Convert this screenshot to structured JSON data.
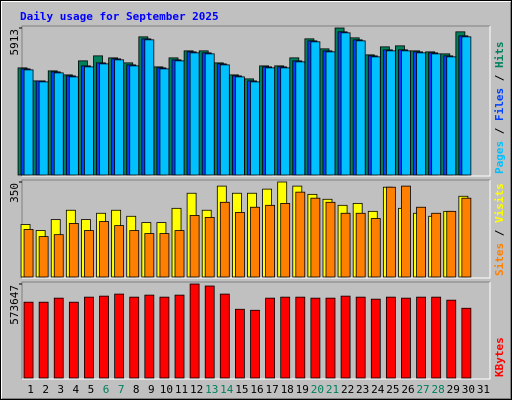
{
  "title": "Daily usage for September 2025",
  "categories": [
    "1",
    "2",
    "3",
    "4",
    "5",
    "6",
    "7",
    "8",
    "9",
    "10",
    "11",
    "12",
    "13",
    "14",
    "15",
    "16",
    "17",
    "18",
    "19",
    "20",
    "21",
    "22",
    "23",
    "24",
    "25",
    "26",
    "27",
    "28",
    "29",
    "30",
    "31"
  ],
  "highlight_categories": [
    "6",
    "7",
    "13",
    "14",
    "20",
    "21",
    "27",
    "28"
  ],
  "category_color": "#000000",
  "highlight_color": "#00805c",
  "label_separator": " / ",
  "chart_data": [
    {
      "type": "bar",
      "ylim": [
        0,
        5913
      ],
      "yticks": [
        5913
      ],
      "series": [
        {
          "name": "Hits",
          "color": "#00805c",
          "values": [
            4320,
            3800,
            4200,
            4040,
            4600,
            4800,
            4720,
            4520,
            5560,
            4360,
            4720,
            5000,
            5000,
            4520,
            4040,
            3880,
            4400,
            4400,
            4720,
            5480,
            5080,
            5913,
            5520,
            4840,
            5160,
            5200,
            5000,
            4960,
            4880,
            5760,
            null
          ]
        },
        {
          "name": "Files",
          "color": "#0040ff",
          "values": [
            4280,
            3800,
            4160,
            4000,
            4400,
            4520,
            4680,
            4440,
            5480,
            4320,
            4640,
            4960,
            4920,
            4480,
            4000,
            3800,
            4360,
            4360,
            4600,
            5400,
            5000,
            5760,
            5440,
            4800,
            5040,
            5040,
            4960,
            4920,
            4800,
            5600,
            null
          ]
        },
        {
          "name": "Pages",
          "color": "#00c0ff",
          "values": [
            4240,
            3760,
            4120,
            3960,
            4360,
            4480,
            4640,
            4400,
            5440,
            4280,
            4600,
            4920,
            4880,
            4440,
            3960,
            3760,
            4320,
            4320,
            4560,
            5360,
            4960,
            5720,
            5400,
            4760,
            5000,
            5000,
            4920,
            4880,
            4760,
            5560,
            null
          ]
        }
      ]
    },
    {
      "type": "bar",
      "ylim": [
        0,
        350
      ],
      "yticks": [
        350
      ],
      "series": [
        {
          "name": "Visits",
          "color": "#ffff00",
          "values": [
            195,
            173,
            213,
            247,
            213,
            236,
            247,
            225,
            202,
            202,
            254,
            309,
            247,
            335,
            309,
            309,
            324,
            350,
            335,
            305,
            287,
            265,
            272,
            243,
            331,
            254,
            236,
            225,
            243,
            298,
            null
          ]
        },
        {
          "name": "Sites",
          "color": "#ff8000",
          "values": [
            177,
            151,
            158,
            199,
            173,
            206,
            191,
            173,
            162,
            162,
            173,
            228,
            221,
            276,
            239,
            258,
            265,
            272,
            313,
            291,
            276,
            236,
            236,
            217,
            331,
            335,
            258,
            236,
            243,
            291,
            null
          ]
        }
      ]
    },
    {
      "type": "bar",
      "ylim": [
        0,
        573647
      ],
      "yticks": [
        573647
      ],
      "series": [
        {
          "name": "KBytes",
          "color": "#ff0000",
          "values": [
            463800,
            463800,
            488200,
            463800,
            494300,
            500400,
            512700,
            494300,
            506500,
            494300,
            506500,
            573647,
            561500,
            512700,
            421100,
            415000,
            488200,
            494300,
            494300,
            488200,
            488200,
            500400,
            494300,
            482100,
            494300,
            488200,
            494300,
            494300,
            476000,
            427200,
            null
          ]
        }
      ]
    }
  ]
}
